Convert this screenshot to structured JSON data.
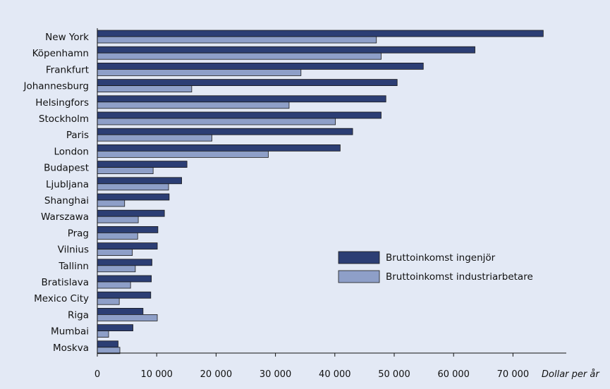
{
  "chart_data": {
    "type": "bar",
    "orientation": "horizontal",
    "categories": [
      "New York",
      "Köpenhamn",
      "Frankfurt",
      "Johannesburg",
      "Helsingfors",
      "Stockholm",
      "Paris",
      "London",
      "Budapest",
      "Ljubljana",
      "Shanghai",
      "Warszawa",
      "Prag",
      "Vilnius",
      "Tallinn",
      "Bratislava",
      "Mexico City",
      "Riga",
      "Mumbai",
      "Moskva"
    ],
    "series": [
      {
        "name": "Bruttoinkomst ingenjör",
        "color": "#2c3e74",
        "values": [
          75100,
          63600,
          54900,
          50500,
          48600,
          47800,
          43000,
          40900,
          15100,
          14200,
          12100,
          11300,
          10200,
          10100,
          9200,
          9100,
          9000,
          7700,
          6000,
          3500
        ]
      },
      {
        "name": "Bruttoinkomst industriarbetare",
        "color": "#8e9fc8",
        "values": [
          47000,
          47800,
          34300,
          15900,
          32300,
          40100,
          19300,
          28800,
          9400,
          12000,
          4600,
          6900,
          6800,
          5900,
          6400,
          5600,
          3700,
          10100,
          1900,
          3800
        ]
      }
    ],
    "xlim": [
      0,
      79000
    ],
    "xticks": [
      0,
      10000,
      20000,
      30000,
      40000,
      50000,
      60000,
      70000
    ],
    "xtick_labels": [
      "0",
      "10 000",
      "20 000",
      "30 000",
      "40 000",
      "50 000",
      "60 000",
      "70 000"
    ],
    "xlabel": "Dollar per år",
    "title": "",
    "grid": false,
    "legend_position": "lower-right"
  }
}
